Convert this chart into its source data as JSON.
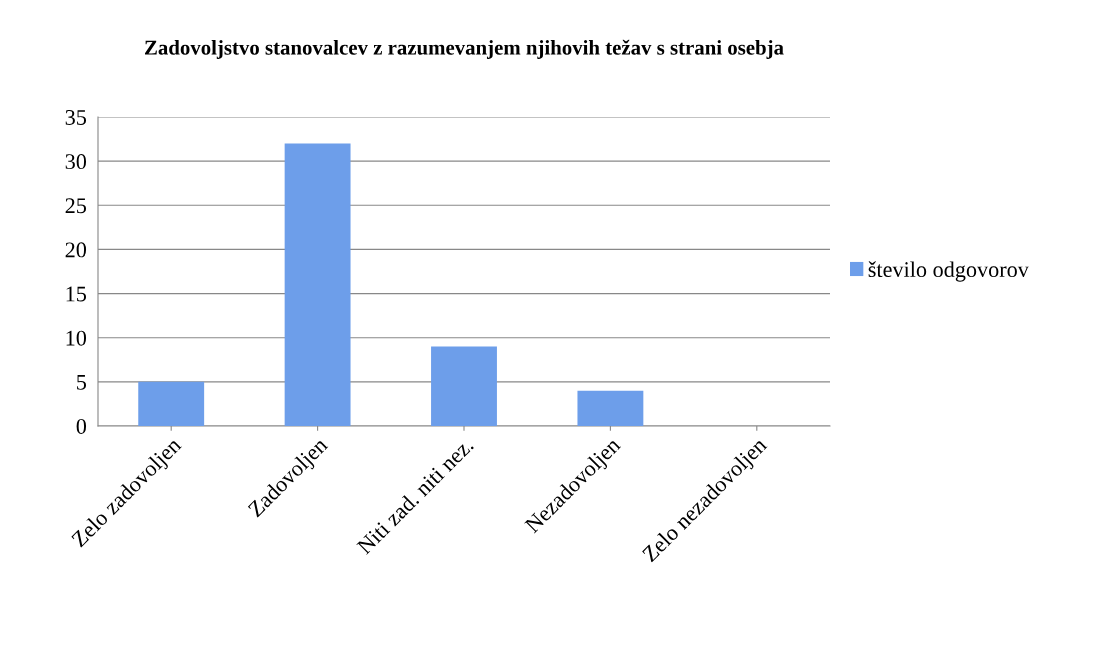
{
  "chart_data": {
    "type": "bar",
    "title": "Zadovoljstvo stanovalcev z razumevanjem njihovih težav s strani osebja",
    "categories": [
      "Zelo zadovoljen",
      "Zadovoljen",
      "Niti zad. niti nez.",
      "Nezadovoljen",
      "Zelo nezadovoljen"
    ],
    "series": [
      {
        "name": "število odgovorov",
        "color": "#6d9eea",
        "values": [
          5,
          32,
          9,
          4,
          0
        ]
      }
    ],
    "ylim": [
      0,
      35
    ],
    "yticks": [
      0,
      5,
      10,
      15,
      20,
      25,
      30,
      35
    ],
    "grid": "y",
    "legend": "right"
  }
}
